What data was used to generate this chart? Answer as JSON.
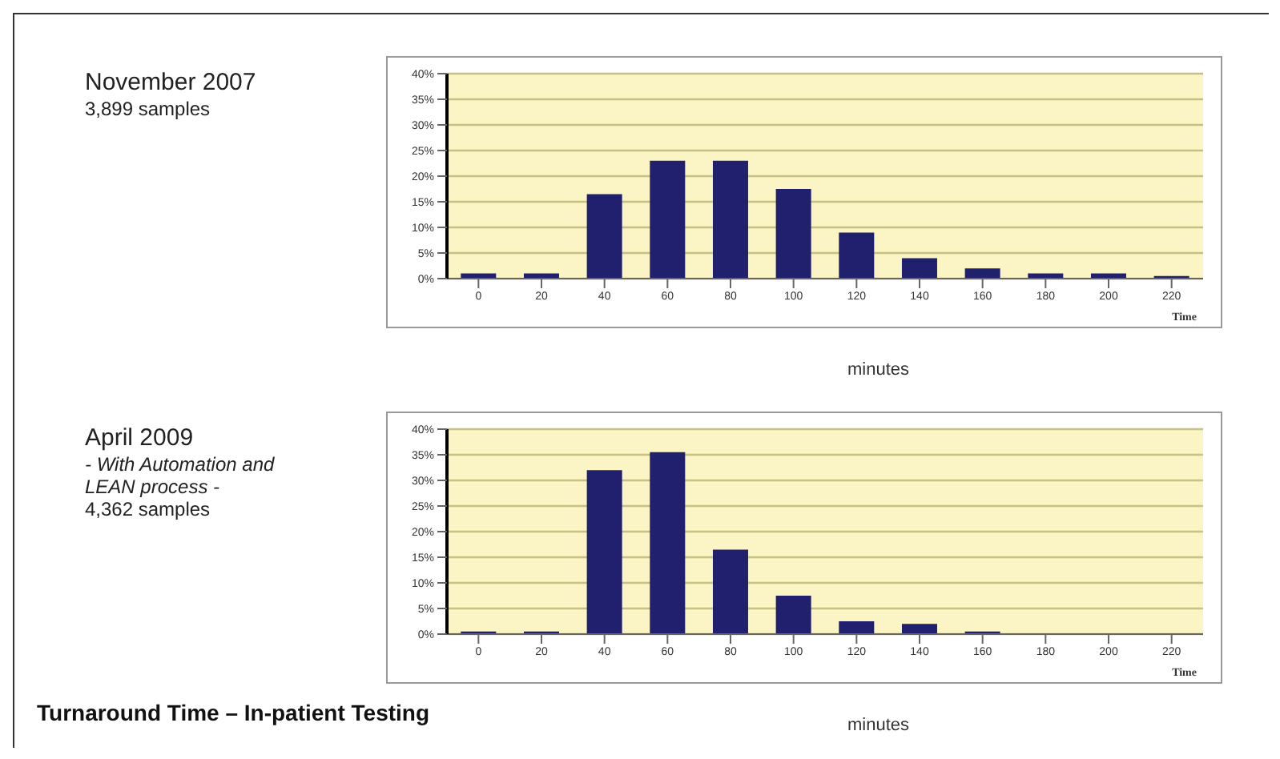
{
  "chart_data": [
    {
      "type": "bar",
      "xlabel": "Time",
      "annotations": [
        "November 2007",
        "3,899 samples",
        "minutes"
      ],
      "categories": [
        "0",
        "20",
        "40",
        "60",
        "80",
        "100",
        "120",
        "140",
        "160",
        "180",
        "200",
        "220"
      ],
      "values": [
        1,
        1,
        16.5,
        23,
        23,
        17.5,
        9,
        4,
        2,
        1,
        1,
        0.5
      ],
      "color": "#20206e",
      "ylim": [
        0,
        40
      ],
      "yticks": [
        {
          "value": 0,
          "label": "0%"
        },
        {
          "value": 5,
          "label": "5%"
        },
        {
          "value": 10,
          "label": "10%"
        },
        {
          "value": 15,
          "label": "15%"
        },
        {
          "value": 20,
          "label": "20%"
        },
        {
          "value": 25,
          "label": "25%"
        },
        {
          "value": 30,
          "label": "30%"
        },
        {
          "value": 35,
          "label": "35%"
        },
        {
          "value": 40,
          "label": "40%"
        }
      ],
      "grid": "y"
    },
    {
      "type": "bar",
      "xlabel": "Time",
      "annotations": [
        "April 2009",
        "- With Automation and LEAN process -",
        "4,362 samples",
        "minutes",
        "Turnaround Time – In-patient Testing"
      ],
      "categories": [
        "0",
        "20",
        "40",
        "60",
        "80",
        "100",
        "120",
        "140",
        "160",
        "180",
        "200",
        "220"
      ],
      "values": [
        0.5,
        0.5,
        32,
        35.5,
        16.5,
        7.5,
        2.5,
        2,
        0.5,
        null,
        null,
        null
      ],
      "color": "#20206e",
      "ylim": [
        0,
        40
      ],
      "yticks": [
        {
          "value": 0,
          "label": "0%"
        },
        {
          "value": 5,
          "label": "5%"
        },
        {
          "value": 10,
          "label": "10%"
        },
        {
          "value": 15,
          "label": "15%"
        },
        {
          "value": 20,
          "label": "20%"
        },
        {
          "value": 25,
          "label": "25%"
        },
        {
          "value": 30,
          "label": "30%"
        },
        {
          "value": 35,
          "label": "35%"
        },
        {
          "value": 40,
          "label": "40%"
        }
      ],
      "grid": "y"
    }
  ]
}
